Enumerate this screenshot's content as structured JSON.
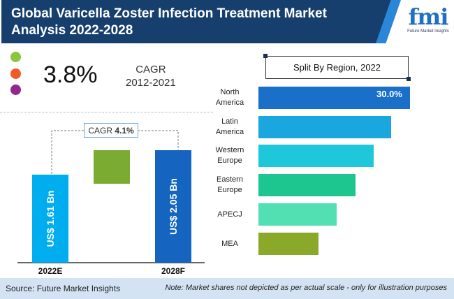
{
  "header": {
    "title": "Global Varicella Zoster Infection Treatment Market Analysis 2022-2028"
  },
  "logo": {
    "text": "fmi",
    "tagline": "Future Market Insights"
  },
  "stats": {
    "cagr_value": "3.8%",
    "cagr_label": "CAGR",
    "cagr_period": "2012-2021",
    "dot_colors": [
      "#8cc63f",
      "#f05a28",
      "#92278f"
    ]
  },
  "colors": {
    "header": "#173f6d",
    "bar_2022": "#00adef",
    "bar_2028": "#1565c0",
    "growth": "#7cab32"
  },
  "chart_data": [
    {
      "type": "bar",
      "title": "",
      "categories": [
        "2022E",
        "2028F"
      ],
      "values": [
        1.61,
        2.05
      ],
      "data_labels": [
        "US$ 1.61 Bn",
        "US$ 2.05 Bn"
      ],
      "annotation": {
        "prefix": "CAGR",
        "value": "4.1%"
      }
    },
    {
      "type": "bar",
      "orientation": "horizontal",
      "title": "Split By Region, 2022",
      "categories": [
        "North America",
        "Latin America",
        "Western Europe",
        "Eastern Europe",
        "APECJ",
        "MEA"
      ],
      "labels": [
        [
          "North",
          "America"
        ],
        [
          "Latin",
          "America"
        ],
        [
          "Western",
          "Europe"
        ],
        [
          "Eastern",
          "Europe"
        ],
        [
          "APECJ"
        ],
        [
          "MEA"
        ]
      ],
      "values": [
        30.0,
        26.3,
        22.8,
        19.2,
        15.5,
        11.9
      ],
      "data_labels": [
        "30.0%",
        "",
        "",
        "",
        "",
        ""
      ],
      "colors": [
        "#1a6fc9",
        "#1aa7e0",
        "#1ec8da",
        "#1cc68e",
        "#52e0b2",
        "#8aa82a"
      ]
    }
  ],
  "footer": {
    "source": "Source: Future Market Insights",
    "note": "Note: Market shares not depicted as per actual scale - only for illustration purposes"
  }
}
